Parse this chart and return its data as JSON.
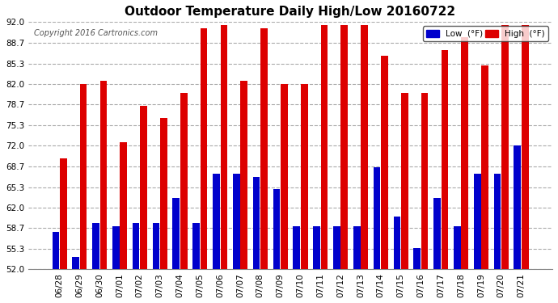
{
  "title": "Outdoor Temperature Daily High/Low 20160722",
  "copyright": "Copyright 2016 Cartronics.com",
  "ylabel_low": "Low  (°F)",
  "ylabel_high": "High  (°F)",
  "background_color": "#ffffff",
  "plot_bg_color": "#ffffff",
  "grid_color": "#aaaaaa",
  "low_color": "#0000cc",
  "high_color": "#dd0000",
  "ylim": [
    52.0,
    92.0
  ],
  "yticks": [
    52.0,
    55.3,
    58.7,
    62.0,
    65.3,
    68.7,
    72.0,
    75.3,
    78.7,
    82.0,
    85.3,
    88.7,
    92.0
  ],
  "dates": [
    "06/28",
    "06/29",
    "06/30",
    "07/01",
    "07/02",
    "07/03",
    "07/04",
    "07/05",
    "07/06",
    "07/07",
    "07/08",
    "07/09",
    "07/10",
    "07/11",
    "07/12",
    "07/13",
    "07/14",
    "07/15",
    "07/16",
    "07/17",
    "07/18",
    "07/19",
    "07/20",
    "07/21"
  ],
  "highs": [
    70.0,
    82.0,
    82.5,
    72.5,
    78.5,
    76.5,
    80.5,
    91.0,
    91.5,
    82.5,
    91.0,
    82.0,
    82.0,
    91.5,
    91.5,
    91.5,
    86.5,
    80.5,
    80.5,
    87.5,
    89.5,
    85.0,
    91.5,
    91.5
  ],
  "lows": [
    58.0,
    54.0,
    59.5,
    59.0,
    59.5,
    59.5,
    63.5,
    59.5,
    67.5,
    67.5,
    67.0,
    65.0,
    59.0,
    59.0,
    59.0,
    59.0,
    68.5,
    60.5,
    55.5,
    63.5,
    59.0,
    67.5,
    67.5,
    72.0
  ]
}
